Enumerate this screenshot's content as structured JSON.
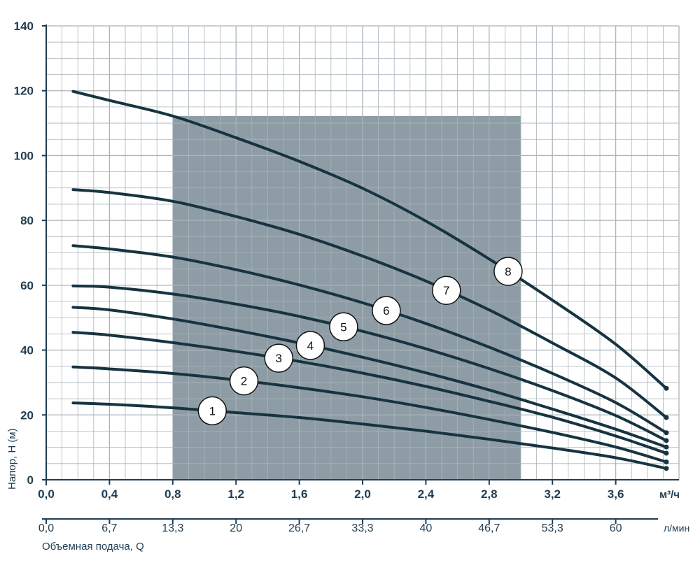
{
  "chart_data": {
    "type": "line",
    "ylabel": "Напор, H (м)",
    "xlabel": "Объемная подача, Q",
    "x_unit_primary": "м³/ч",
    "x_unit_secondary": "л/мин",
    "xlim": [
      0,
      4.0
    ],
    "ylim": [
      0,
      140
    ],
    "y_ticks": [
      0,
      20,
      40,
      60,
      80,
      100,
      120,
      140
    ],
    "x_ticks_primary": [
      "0,0",
      "0,4",
      "0,8",
      "1,2",
      "1,6",
      "2,0",
      "2,4",
      "2,8",
      "3,2",
      "3,6"
    ],
    "x_ticks_primary_values": [
      0,
      0.4,
      0.8,
      1.2,
      1.6,
      2.0,
      2.4,
      2.8,
      3.2,
      3.6
    ],
    "x_ticks_secondary": [
      "0,0",
      "6,7",
      "13,3",
      "20",
      "26,7",
      "33,3",
      "40",
      "46,7",
      "53,3",
      "60"
    ],
    "grid": true,
    "shaded_region": [
      0.8,
      3.0
    ],
    "x": [
      0.17,
      0.4,
      0.8,
      1.2,
      1.6,
      2.0,
      2.4,
      2.8,
      3.2,
      3.6,
      3.92
    ],
    "series": [
      {
        "name": "1",
        "label_x": 1.05,
        "values": [
          23.7,
          23.3,
          22.2,
          20.7,
          19.2,
          17.2,
          15.0,
          12.5,
          9.8,
          6.8,
          3.5
        ]
      },
      {
        "name": "2",
        "label_x": 1.25,
        "values": [
          34.8,
          34.2,
          32.8,
          30.8,
          28.4,
          25.6,
          22.3,
          18.6,
          14.6,
          10.1,
          5.5
        ]
      },
      {
        "name": "3",
        "label_x": 1.47,
        "values": [
          45.5,
          44.6,
          42.3,
          39.6,
          36.5,
          32.9,
          28.8,
          24.2,
          19.3,
          13.5,
          8.2
        ]
      },
      {
        "name": "4",
        "label_x": 1.67,
        "values": [
          53.2,
          52.4,
          49.6,
          46.1,
          42.2,
          37.8,
          33.0,
          27.7,
          21.8,
          15.6,
          10.1
        ]
      },
      {
        "name": "5",
        "label_x": 1.88,
        "values": [
          59.8,
          59.4,
          57.3,
          54.2,
          50.4,
          45.8,
          40.4,
          34.3,
          27.5,
          19.8,
          12.1
        ]
      },
      {
        "name": "6",
        "label_x": 2.15,
        "values": [
          72.2,
          71.2,
          68.7,
          64.8,
          60.1,
          54.6,
          48.2,
          40.9,
          32.8,
          23.8,
          14.5
        ]
      },
      {
        "name": "7",
        "label_x": 2.53,
        "values": [
          89.5,
          88.6,
          85.9,
          81.2,
          75.7,
          69.0,
          61.3,
          52.4,
          42.2,
          31.4,
          19.2
        ]
      },
      {
        "name": "8",
        "label_x": 2.92,
        "values": [
          119.8,
          117.0,
          112.2,
          105.5,
          98.2,
          89.9,
          79.8,
          68.1,
          55.4,
          41.8,
          28.2
        ]
      }
    ]
  },
  "colors": {
    "curve": "#163440",
    "grid": "#a9b4bb",
    "shade": "#8e9ca5",
    "text": "#1f3d52",
    "label_fill": "#ffffff"
  }
}
